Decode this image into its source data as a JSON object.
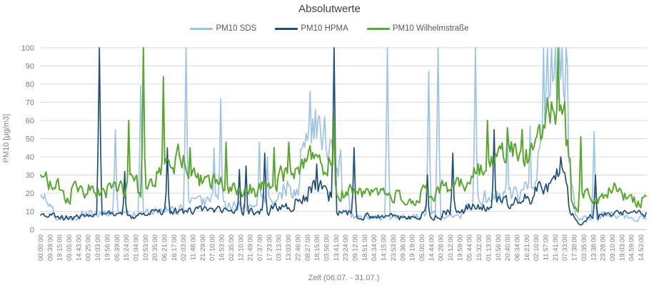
{
  "chart_data": {
    "type": "line",
    "title": "Absolutwerte",
    "xlabel": "Zeit (06.07. - 31.07.)",
    "ylabel": "PM10 [µg/m3]",
    "ylim": [
      0,
      100
    ],
    "yticks": [
      0,
      10,
      20,
      30,
      40,
      50,
      60,
      70,
      80,
      90,
      100
    ],
    "grid": true,
    "legend_position": "top",
    "x_tick_labels": [
      "00:00:00",
      "09:39:00",
      "19:15:00",
      "05:05:00",
      "14:43:00",
      "00:25:00",
      "10:03:00",
      "19:56:00",
      "05:39:00",
      "15:24:00",
      "01:04:00",
      "10:53:00",
      "20:35:00",
      "06:21:00",
      "16:17:00",
      "02:03:00",
      "11:48:00",
      "21:29:00",
      "07:10:00",
      "16:53:00",
      "02:35:00",
      "12:10:00",
      "21:49:00",
      "07:37:00",
      "17:23:00",
      "03:13:00",
      "13:03:00",
      "22:46:00",
      "08:27:00",
      "18:15:00",
      "03:56:00",
      "13:41:00",
      "23:24:00",
      "09:12:00",
      "18:51:00",
      "04:34:00",
      "14:15:00",
      "23:53:00",
      "09:36:00",
      "19:19:00",
      "05:00:00",
      "14:44:00",
      "00:28:00",
      "10:12:00",
      "19:59:00",
      "05:44:00",
      "15:32:00",
      "01:13:00",
      "10:56:00",
      "20:40:00",
      "06:34:00",
      "16:21:00",
      "02:10:00",
      "11:57:00",
      "21:41:00",
      "07:33:00",
      "17:38:00",
      "03:35:00",
      "13:38:00",
      "23:28:00",
      "09:10:00",
      "19:03:00",
      "04:59:00",
      "14:53:00"
    ],
    "series_note": "x = percent of the time axis (0-100), values in µg/m3. band_segments [xStart,xEnd,min,max] give the noisy envelope of the dense 1-min line; spikes [x,peak] are the prominent excursions read from the plot.",
    "series": [
      {
        "name": "PM10 SDS",
        "color": "#9DC3E6",
        "band_segments": [
          [
            0,
            0.8,
            16,
            22
          ],
          [
            0.8,
            2,
            8,
            16
          ],
          [
            2,
            6,
            3,
            9
          ],
          [
            6,
            10,
            5,
            12
          ],
          [
            10,
            13,
            6,
            14
          ],
          [
            13,
            16,
            5,
            12
          ],
          [
            16,
            20,
            6,
            14
          ],
          [
            20,
            24,
            7,
            15
          ],
          [
            24,
            27,
            10,
            20
          ],
          [
            27,
            30,
            10,
            22
          ],
          [
            30,
            33,
            8,
            18
          ],
          [
            33,
            36,
            8,
            16
          ],
          [
            36,
            40,
            10,
            24
          ],
          [
            40,
            42.5,
            14,
            32
          ],
          [
            42.5,
            44,
            28,
            58
          ],
          [
            44,
            46,
            38,
            72
          ],
          [
            46,
            48,
            34,
            62
          ],
          [
            48,
            49.5,
            24,
            48
          ],
          [
            49.5,
            51,
            8,
            20
          ],
          [
            51,
            57,
            4,
            10
          ],
          [
            57,
            62,
            4,
            9
          ],
          [
            62,
            66,
            5,
            11
          ],
          [
            66,
            70,
            5,
            12
          ],
          [
            70,
            72,
            8,
            18
          ],
          [
            72,
            76,
            10,
            24
          ],
          [
            76,
            79,
            12,
            28
          ],
          [
            79,
            82,
            14,
            30
          ],
          [
            82,
            82.8,
            28,
            55
          ],
          [
            82.8,
            87.1,
            58,
            100
          ],
          [
            87.1,
            88,
            14,
            38
          ],
          [
            88,
            89.5,
            3,
            8
          ],
          [
            89.5,
            92,
            4,
            10
          ],
          [
            92,
            95,
            5,
            12
          ],
          [
            95,
            100,
            4,
            9
          ]
        ],
        "spikes": [
          [
            12.3,
            55
          ],
          [
            16.6,
            79
          ],
          [
            24,
            100
          ],
          [
            28.5,
            45
          ],
          [
            29.8,
            72
          ],
          [
            36.1,
            48
          ],
          [
            37.3,
            40
          ],
          [
            44.4,
            76
          ],
          [
            45.3,
            66
          ],
          [
            46.8,
            62
          ],
          [
            48.3,
            52
          ],
          [
            57.3,
            100
          ],
          [
            64,
            87
          ],
          [
            65.6,
            100
          ],
          [
            71.8,
            100
          ],
          [
            77.1,
            55
          ],
          [
            80.8,
            57
          ],
          [
            83,
            100
          ],
          [
            83.6,
            100
          ],
          [
            84.3,
            100
          ],
          [
            84.9,
            100
          ],
          [
            85.5,
            100
          ],
          [
            86.1,
            100
          ],
          [
            86.7,
            100
          ],
          [
            86.95,
            90
          ],
          [
            91.3,
            54
          ]
        ]
      },
      {
        "name": "PM10 HPMA",
        "color": "#1F4E79",
        "band_segments": [
          [
            0,
            2,
            6,
            10
          ],
          [
            2,
            6,
            4,
            9
          ],
          [
            6,
            10,
            5,
            10
          ],
          [
            10,
            14,
            6,
            11
          ],
          [
            14,
            18,
            5,
            10
          ],
          [
            18,
            22,
            7,
            13
          ],
          [
            22,
            26,
            7,
            13
          ],
          [
            26,
            30,
            8,
            14
          ],
          [
            30,
            34,
            7,
            13
          ],
          [
            34,
            38,
            7,
            13
          ],
          [
            38,
            42,
            8,
            16
          ],
          [
            42,
            44,
            12,
            22
          ],
          [
            44,
            47,
            18,
            32
          ],
          [
            47,
            48.5,
            12,
            24
          ],
          [
            48.5,
            52,
            6,
            12
          ],
          [
            52,
            58,
            5,
            10
          ],
          [
            58,
            62,
            4,
            9
          ],
          [
            62,
            66,
            5,
            11
          ],
          [
            66,
            70,
            7,
            14
          ],
          [
            70,
            74,
            8,
            16
          ],
          [
            74,
            78,
            10,
            20
          ],
          [
            78,
            81,
            12,
            22
          ],
          [
            81,
            84,
            18,
            30
          ],
          [
            84,
            87,
            22,
            38
          ],
          [
            87,
            88.2,
            5,
            15
          ],
          [
            88.2,
            90,
            2,
            6
          ],
          [
            90,
            93,
            5,
            10
          ],
          [
            93,
            100,
            6,
            11
          ]
        ],
        "spikes": [
          [
            9.75,
            100
          ],
          [
            13.9,
            32
          ],
          [
            20.8,
            45
          ],
          [
            32.7,
            33
          ],
          [
            33.8,
            35
          ],
          [
            37,
            42
          ],
          [
            45.5,
            36
          ],
          [
            48.5,
            100
          ],
          [
            51.8,
            45
          ],
          [
            63.8,
            30
          ],
          [
            68,
            42
          ],
          [
            74.7,
            55
          ],
          [
            85.8,
            40
          ],
          [
            91.5,
            30
          ]
        ]
      },
      {
        "name": "PM10 Wilhelmstraße",
        "color": "#5AA62F",
        "band_segments": [
          [
            0,
            1,
            26,
            34
          ],
          [
            1,
            3,
            18,
            30
          ],
          [
            3,
            5,
            13,
            22
          ],
          [
            5,
            8,
            15,
            28
          ],
          [
            8,
            11,
            14,
            26
          ],
          [
            11,
            14,
            16,
            28
          ],
          [
            14,
            16,
            20,
            34
          ],
          [
            16,
            17,
            14,
            22
          ],
          [
            17,
            19,
            18,
            30
          ],
          [
            19,
            20.2,
            24,
            38
          ],
          [
            20.2,
            22,
            28,
            42
          ],
          [
            22,
            24,
            30,
            46
          ],
          [
            24,
            26,
            24,
            42
          ],
          [
            26,
            28,
            20,
            35
          ],
          [
            28,
            30.5,
            18,
            34
          ],
          [
            30.5,
            33,
            16,
            30
          ],
          [
            33,
            36,
            14,
            28
          ],
          [
            36,
            39,
            18,
            34
          ],
          [
            39,
            42,
            22,
            40
          ],
          [
            42,
            44,
            28,
            45
          ],
          [
            44,
            46.5,
            34,
            48
          ],
          [
            46.5,
            47.5,
            26,
            36
          ],
          [
            47.5,
            48.4,
            32,
            50
          ],
          [
            48.4,
            50,
            15,
            25
          ],
          [
            50,
            54,
            15,
            26
          ],
          [
            54,
            58,
            14,
            24
          ],
          [
            58,
            62,
            12,
            24
          ],
          [
            62,
            65,
            14,
            26
          ],
          [
            65,
            68,
            16,
            30
          ],
          [
            68,
            71,
            18,
            33
          ],
          [
            71,
            73,
            24,
            40
          ],
          [
            73,
            75,
            28,
            44
          ],
          [
            75,
            79,
            34,
            52
          ],
          [
            79,
            81.5,
            32,
            50
          ],
          [
            81.5,
            83,
            44,
            62
          ],
          [
            83,
            85.3,
            54,
            78
          ],
          [
            85.3,
            86.5,
            54,
            74
          ],
          [
            86.5,
            87.5,
            28,
            52
          ],
          [
            87.5,
            88.5,
            9,
            16
          ],
          [
            88.5,
            89.3,
            8,
            14
          ],
          [
            89.3,
            92,
            12,
            25
          ],
          [
            92,
            95,
            15,
            28
          ],
          [
            95,
            97,
            13,
            24
          ],
          [
            97,
            99,
            11,
            20
          ],
          [
            99,
            100,
            14,
            22
          ]
        ],
        "spikes": [
          [
            14.6,
            60
          ],
          [
            16.9,
            100
          ],
          [
            20.25,
            84
          ],
          [
            22.7,
            47
          ],
          [
            24.7,
            45
          ],
          [
            30.5,
            48
          ],
          [
            38.5,
            45
          ],
          [
            41,
            48
          ],
          [
            48.4,
            63
          ],
          [
            73.7,
            60
          ],
          [
            77,
            56
          ],
          [
            79.4,
            55
          ],
          [
            85.3,
            100
          ],
          [
            89,
            51
          ]
        ]
      }
    ]
  },
  "colors": {
    "background": "#FFFFFF",
    "grid": "#DADADA",
    "axis_line": "#BFBFBF",
    "tick_text": "#808080",
    "title_text": "#404040",
    "legend_text": "#595959"
  }
}
